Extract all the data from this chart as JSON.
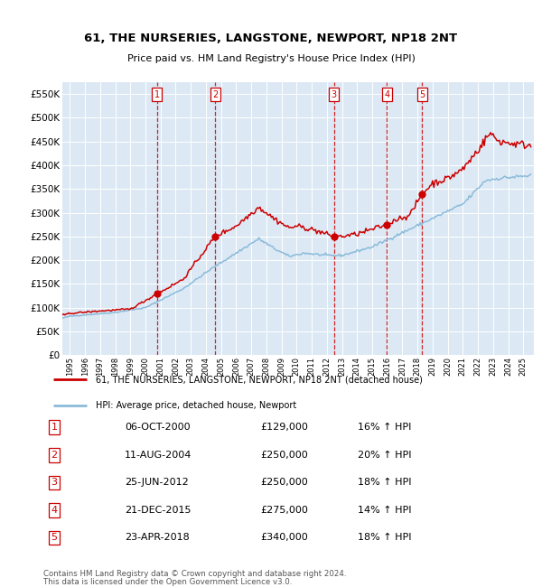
{
  "title": "61, THE NURSERIES, LANGSTONE, NEWPORT, NP18 2NT",
  "subtitle": "Price paid vs. HM Land Registry's House Price Index (HPI)",
  "legend_line1": "61, THE NURSERIES, LANGSTONE, NEWPORT, NP18 2NT (detached house)",
  "legend_line2": "HPI: Average price, detached house, Newport",
  "footer_line1": "Contains HM Land Registry data © Crown copyright and database right 2024.",
  "footer_line2": "This data is licensed under the Open Government Licence v3.0.",
  "transactions": [
    {
      "num": 1,
      "date": "06-OCT-2000",
      "price": 129000,
      "hpi_pct": "16%",
      "date_x": 2000.77
    },
    {
      "num": 2,
      "date": "11-AUG-2004",
      "price": 250000,
      "hpi_pct": "20%",
      "date_x": 2004.61
    },
    {
      "num": 3,
      "date": "25-JUN-2012",
      "price": 250000,
      "hpi_pct": "18%",
      "date_x": 2012.48
    },
    {
      "num": 4,
      "date": "21-DEC-2015",
      "price": 275000,
      "hpi_pct": "14%",
      "date_x": 2015.97
    },
    {
      "num": 5,
      "date": "23-APR-2018",
      "price": 340000,
      "hpi_pct": "18%",
      "date_x": 2018.31
    }
  ],
  "ylim": [
    0,
    575000
  ],
  "xlim_start": 1994.5,
  "xlim_end": 2025.7,
  "plot_bg": "#dce9f5",
  "hpi_line_color": "#8bbbd9",
  "sale_line_color": "#cc0000",
  "sale_dot_color": "#cc0000",
  "vline_color": "#cc0000",
  "box_color": "#cc0000",
  "grid_color": "#ffffff",
  "ytick_labels": [
    "£0",
    "£50K",
    "£100K",
    "£150K",
    "£200K",
    "£250K",
    "£300K",
    "£350K",
    "£400K",
    "£450K",
    "£500K",
    "£550K"
  ],
  "ytick_values": [
    0,
    50000,
    100000,
    150000,
    200000,
    250000,
    300000,
    350000,
    400000,
    450000,
    500000,
    550000
  ],
  "row_data": [
    [
      "1",
      "06-OCT-2000",
      "£129,000",
      "16% ↑ HPI"
    ],
    [
      "2",
      "11-AUG-2004",
      "£250,000",
      "20% ↑ HPI"
    ],
    [
      "3",
      "25-JUN-2012",
      "£250,000",
      "18% ↑ HPI"
    ],
    [
      "4",
      "21-DEC-2015",
      "£275,000",
      "14% ↑ HPI"
    ],
    [
      "5",
      "23-APR-2018",
      "£340,000",
      "18% ↑ HPI"
    ]
  ]
}
